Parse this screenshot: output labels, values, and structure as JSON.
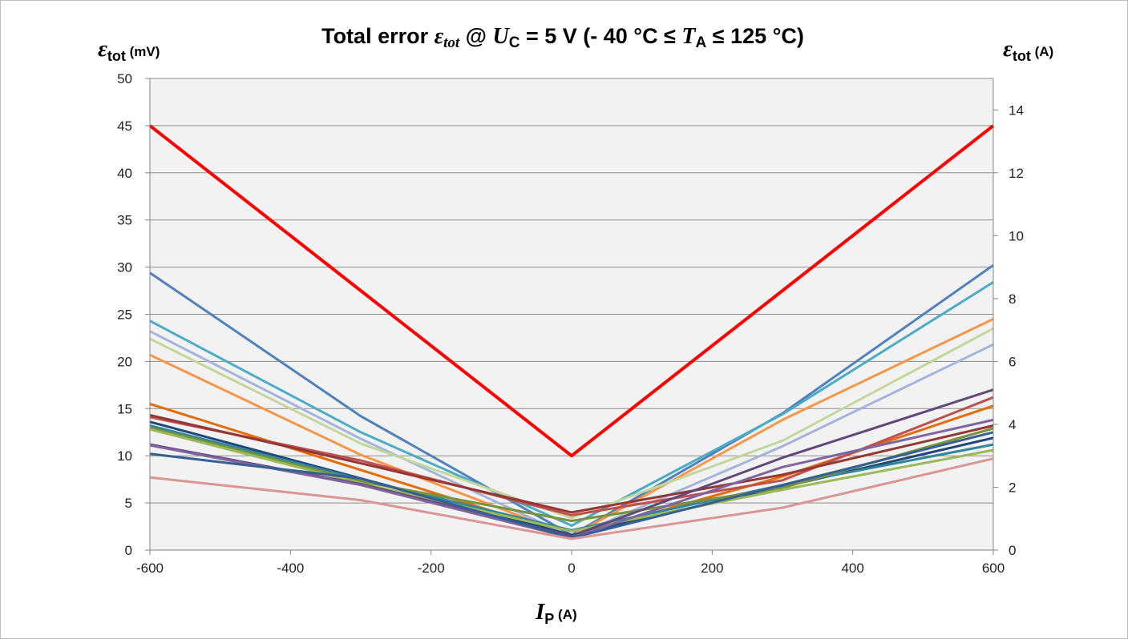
{
  "chart_data": {
    "type": "line",
    "title": {
      "prefix": "Total error ",
      "eps": "ε",
      "eps_sub": "tot",
      "mid": " @ ",
      "u": "U",
      "u_sub": "C",
      "mid2": " = 5 V (- 40 °C ≤ ",
      "t": "T",
      "t_sub": "A",
      "suffix": " ≤ 125 °C)"
    },
    "xlabel": {
      "sym": "I",
      "sub": "P",
      "unit": " (A)"
    },
    "ylabel_left": {
      "sym": "ε",
      "sub": "tot",
      "unit": " (mV)"
    },
    "ylabel_right": {
      "sym": "ε",
      "sub": "tot",
      "unit": " (A)"
    },
    "x_ticks": [
      "-600",
      "-400",
      "-200",
      "0",
      "200",
      "400",
      "600"
    ],
    "y_ticks": [
      "0",
      "5",
      "10",
      "15",
      "20",
      "25",
      "30",
      "35",
      "40",
      "45",
      "50"
    ],
    "y2_ticks": [
      "0",
      "2",
      "4",
      "6",
      "8",
      "10",
      "12",
      "14"
    ],
    "xlim": [
      -600,
      600
    ],
    "ylim": [
      0,
      50
    ],
    "y2lim": [
      0,
      15
    ],
    "grid": true,
    "plot_background": "#f2f2f2",
    "x": [
      -600,
      -300,
      0,
      300,
      600
    ],
    "series": [
      {
        "color": "#ff0000",
        "width": 4,
        "values": [
          45,
          27.5,
          10,
          27.5,
          45
        ]
      },
      {
        "color": "#4f81bd",
        "values": [
          29.4,
          14.2,
          1.6,
          14.5,
          30.2
        ]
      },
      {
        "color": "#4bacc6",
        "values": [
          24.3,
          12.5,
          2.6,
          14.4,
          28.4
        ]
      },
      {
        "color": "#f79646",
        "values": [
          20.7,
          10.1,
          1.5,
          13.8,
          24.5
        ]
      },
      {
        "color": "#a5b5d9",
        "values": [
          23.2,
          11.8,
          1.4,
          11.0,
          21.8
        ]
      },
      {
        "color": "#c3d69b",
        "values": [
          22.4,
          11.3,
          3.4,
          11.6,
          23.5
        ]
      },
      {
        "color": "#e46c0a",
        "values": [
          15.5,
          8.5,
          1.5,
          7.8,
          15.3
        ]
      },
      {
        "color": "#c0504d",
        "values": [
          14.1,
          9.5,
          3.7,
          7.4,
          16.2
        ]
      },
      {
        "color": "#953735",
        "values": [
          14.3,
          9.2,
          4.0,
          8.0,
          13.2
        ]
      },
      {
        "color": "#1f497d",
        "values": [
          13.6,
          7.6,
          1.6,
          6.7,
          11.9
        ]
      },
      {
        "color": "#31859c",
        "values": [
          13.2,
          7.5,
          2.1,
          6.9,
          11.2
        ]
      },
      {
        "color": "#77933c",
        "values": [
          13.0,
          7.3,
          3.1,
          6.6,
          12.9
        ]
      },
      {
        "color": "#9bbb59",
        "values": [
          12.8,
          7.1,
          2.0,
          6.4,
          10.6
        ]
      },
      {
        "color": "#60497a",
        "values": [
          11.2,
          7.0,
          1.5,
          9.8,
          17.0
        ]
      },
      {
        "color": "#8064a2",
        "values": [
          11.1,
          6.9,
          1.3,
          8.8,
          13.8
        ]
      },
      {
        "color": "#376092",
        "values": [
          10.2,
          7.6,
          1.3,
          6.9,
          12.5
        ]
      },
      {
        "color": "#d99694",
        "values": [
          7.7,
          5.3,
          1.2,
          4.5,
          9.7
        ]
      }
    ]
  }
}
